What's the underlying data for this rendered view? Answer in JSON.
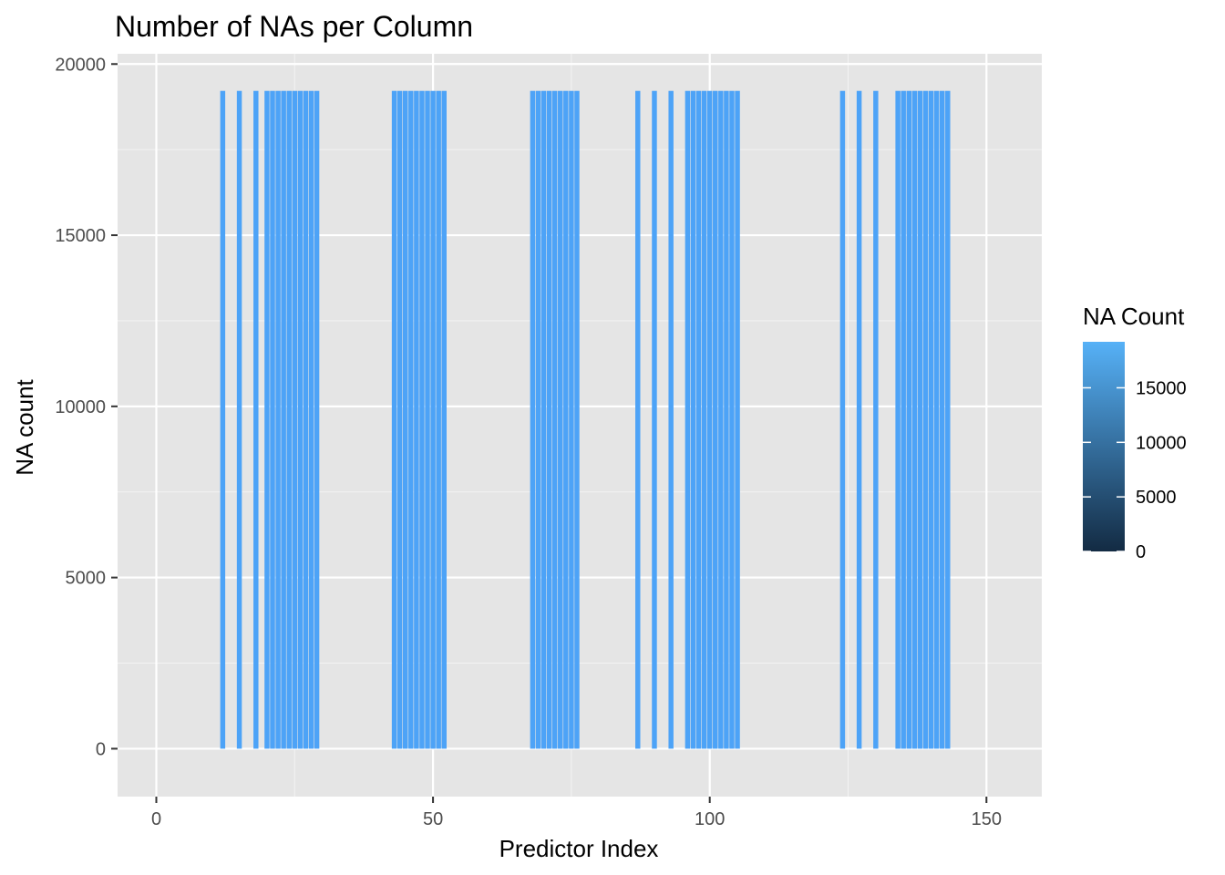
{
  "chart_data": {
    "type": "bar",
    "title": "Number of NAs per Column",
    "xlabel": "Predictor Index",
    "ylabel": "NA count",
    "xlim": [
      -7,
      160
    ],
    "ylim": [
      -1400,
      20300
    ],
    "x_ticks": [
      0,
      50,
      100,
      150
    ],
    "y_ticks": [
      0,
      5000,
      10000,
      15000,
      20000
    ],
    "x_tick_labels": [
      "0",
      "50",
      "100",
      "150"
    ],
    "y_tick_labels": [
      "0",
      "5000",
      "10000",
      "15000",
      "20000"
    ],
    "grid": true,
    "bar_color": "#4da3f7",
    "panel_color": "#e5e5e5",
    "na_value": 19216,
    "na_columns": [
      12,
      15,
      18,
      20,
      21,
      22,
      23,
      24,
      25,
      26,
      27,
      28,
      29,
      43,
      44,
      45,
      46,
      47,
      48,
      49,
      50,
      51,
      52,
      68,
      69,
      70,
      71,
      72,
      73,
      74,
      75,
      76,
      87,
      90,
      93,
      96,
      97,
      98,
      99,
      100,
      101,
      102,
      103,
      104,
      105,
      124,
      127,
      130,
      134,
      135,
      136,
      137,
      138,
      139,
      140,
      141,
      142,
      143
    ]
  },
  "legend": {
    "title": "NA Count",
    "position": "right",
    "low_color": "#132b43",
    "high_color": "#56b1f7",
    "range": [
      0,
      19216
    ],
    "breaks": [
      0,
      5000,
      10000,
      15000
    ],
    "labels": [
      "0",
      "5000",
      "10000",
      "15000"
    ]
  }
}
